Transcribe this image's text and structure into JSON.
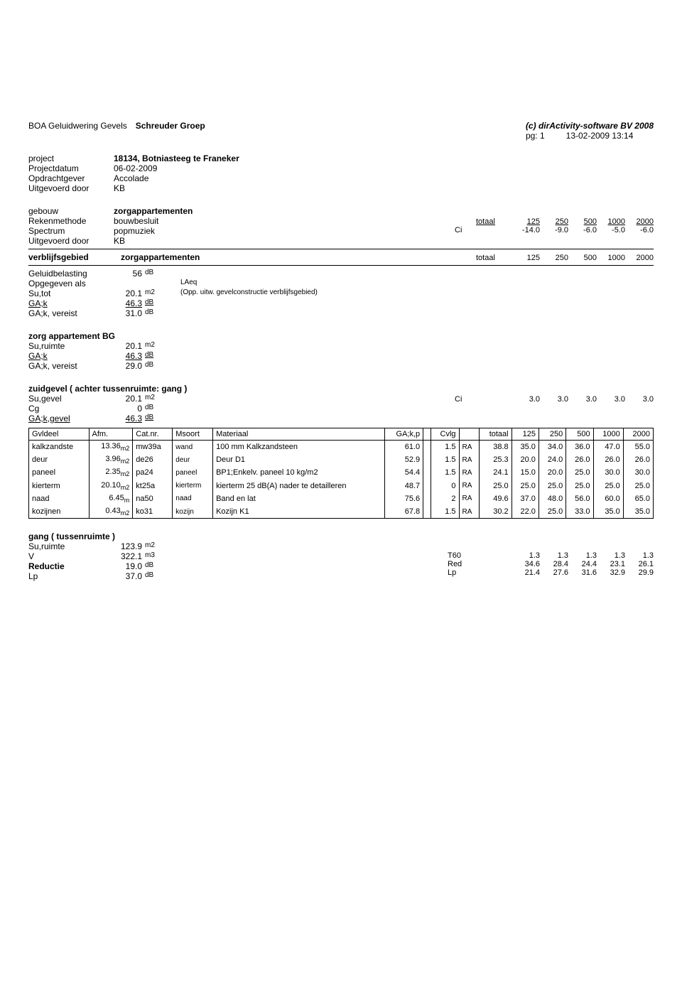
{
  "header": {
    "app_left_1": "BOA Geluidwering Gevels",
    "app_left_2": "Schreuder Groep",
    "copyright": "(c) dirActivity-software BV 2008",
    "pg_label": "pg: 1",
    "timestamp": "13-02-2009 13:14"
  },
  "project_block": {
    "rows": [
      {
        "label": "project",
        "value": "18134, Botniasteeg te Franeker",
        "bold": true
      },
      {
        "label": "Projectdatum",
        "value": "06-02-2009"
      },
      {
        "label": "Opdrachtgever",
        "value": "Accolade"
      },
      {
        "label": "Uitgevoerd door",
        "value": "KB"
      }
    ]
  },
  "gebouw_block": {
    "rows": [
      {
        "label": "gebouw",
        "value": "zorgappartementen",
        "bold": true
      },
      {
        "label": "Rekenmethode",
        "value": "bouwbesluit"
      },
      {
        "label": "Spectrum",
        "value": "popmuziek"
      },
      {
        "label": "Uitgevoerd door",
        "value": "KB"
      }
    ],
    "ci_label": "Ci",
    "totaal_label": "totaal",
    "freq_headers": [
      "125",
      "250",
      "500",
      "1000",
      "2000"
    ],
    "ci_values": [
      "-14.0",
      "-9.0",
      "-6.0",
      "-5.0",
      "-6.0"
    ]
  },
  "verblijf": {
    "title_l": "verblijfsgebied",
    "title_r": "zorgappartementen",
    "totaal_label": "totaal",
    "freq_headers": [
      "125",
      "250",
      "500",
      "1000",
      "2000"
    ],
    "lines": [
      {
        "label": "Geluidbelasting",
        "val": "56",
        "unit": "dB",
        "note": ""
      },
      {
        "label": "Opgegeven als",
        "val": "",
        "unit": "",
        "note": "LAeq"
      },
      {
        "label": "Su,tot",
        "val": "20.1",
        "unit": "m2",
        "note": "(Opp. uitw. gevelconstructie verblijfsgebied)"
      },
      {
        "label": "GA;k",
        "val": "46.3",
        "unit": "dB",
        "note": "",
        "underline": true
      },
      {
        "label": "GA;k, vereist",
        "val": "31.0",
        "unit": "dB",
        "note": ""
      }
    ]
  },
  "zorg_bg": {
    "title": "zorg appartement BG",
    "lines": [
      {
        "label": "Su,ruimte",
        "val": "20.1",
        "unit": "m2"
      },
      {
        "label": "GA;k",
        "val": "46.3",
        "unit": "dB",
        "underline": true
      },
      {
        "label": "GA;k, vereist",
        "val": "29.0",
        "unit": "dB"
      }
    ]
  },
  "zuidgevel": {
    "title": "zuidgevel ( achter tussenruimte: gang )",
    "lines": [
      {
        "label": "Su,gevel",
        "val": "20.1",
        "unit": "m2"
      },
      {
        "label": "Cg",
        "val": "0",
        "unit": "dB"
      },
      {
        "label": "GA;k,gevel",
        "val": "46.3",
        "unit": "dB",
        "underline": true
      }
    ],
    "ci_label": "Ci",
    "ci_values": [
      "3.0",
      "3.0",
      "3.0",
      "3.0",
      "3.0"
    ]
  },
  "gvl_table": {
    "headers": [
      "Gvldeel",
      "Afm.",
      "Cat.nr.",
      "Msoort",
      "Materiaal",
      "GA;k,p",
      "",
      "Cvlg",
      "",
      "totaal",
      "125",
      "250",
      "500",
      "1000",
      "2000"
    ],
    "rows": [
      {
        "c": [
          "kalkzandste",
          "13.36",
          "m2",
          "mw39a",
          "wand",
          "100 mm Kalkzandsteen",
          "61.0",
          "",
          "1.5",
          "RA",
          "38.8",
          "35.0",
          "34.0",
          "36.0",
          "47.0",
          "55.0"
        ]
      },
      {
        "c": [
          "deur",
          "3.96",
          "m2",
          "de26",
          "deur",
          "Deur D1",
          "52.9",
          "",
          "1.5",
          "RA",
          "25.3",
          "20.0",
          "24.0",
          "26.0",
          "26.0",
          "26.0"
        ]
      },
      {
        "c": [
          "paneel",
          "2.35",
          "m2",
          "pa24",
          "paneel",
          "BP1;Enkelv. paneel 10 kg/m2",
          "54.4",
          "",
          "1.5",
          "RA",
          "24.1",
          "15.0",
          "20.0",
          "25.0",
          "30.0",
          "30.0"
        ]
      },
      {
        "c": [
          "kierterm",
          "20.10",
          "m2",
          "kt25a",
          "kierterm",
          "kierterm 25 dB(A) nader te detailleren",
          "48.7",
          "",
          "0",
          "RA",
          "25.0",
          "25.0",
          "25.0",
          "25.0",
          "25.0",
          "25.0"
        ]
      },
      {
        "c": [
          "naad",
          "6.45",
          "m",
          "na50",
          "naad",
          "Band en lat",
          "75.6",
          "",
          "2",
          "RA",
          "49.6",
          "37.0",
          "48.0",
          "56.0",
          "60.0",
          "65.0"
        ]
      },
      {
        "c": [
          "kozijnen",
          "0.43",
          "m2",
          "ko31",
          "kozijn",
          "Kozijn K1",
          "67.8",
          "",
          "1.5",
          "RA",
          "30.2",
          "22.0",
          "25.0",
          "33.0",
          "35.0",
          "35.0"
        ]
      }
    ]
  },
  "gang": {
    "title": "gang ( tussenruimte )",
    "lines": [
      {
        "label": "Su,ruimte",
        "val": "123.9",
        "unit": "m2"
      },
      {
        "label": "V",
        "val": "322.1",
        "unit": "m3"
      },
      {
        "label": "Reductie",
        "val": "19.0",
        "unit": "dB",
        "bold": true
      },
      {
        "label": "Lp",
        "val": "37.0",
        "unit": "dB"
      }
    ],
    "right": [
      {
        "lbl": "T60",
        "vals": [
          "1.3",
          "1.3",
          "1.3",
          "1.3",
          "1.3"
        ]
      },
      {
        "lbl": "Red",
        "vals": [
          "34.6",
          "28.4",
          "24.4",
          "23.1",
          "26.1"
        ]
      },
      {
        "lbl": "Lp",
        "vals": [
          "21.4",
          "27.6",
          "31.6",
          "32.9",
          "29.9"
        ]
      }
    ]
  }
}
